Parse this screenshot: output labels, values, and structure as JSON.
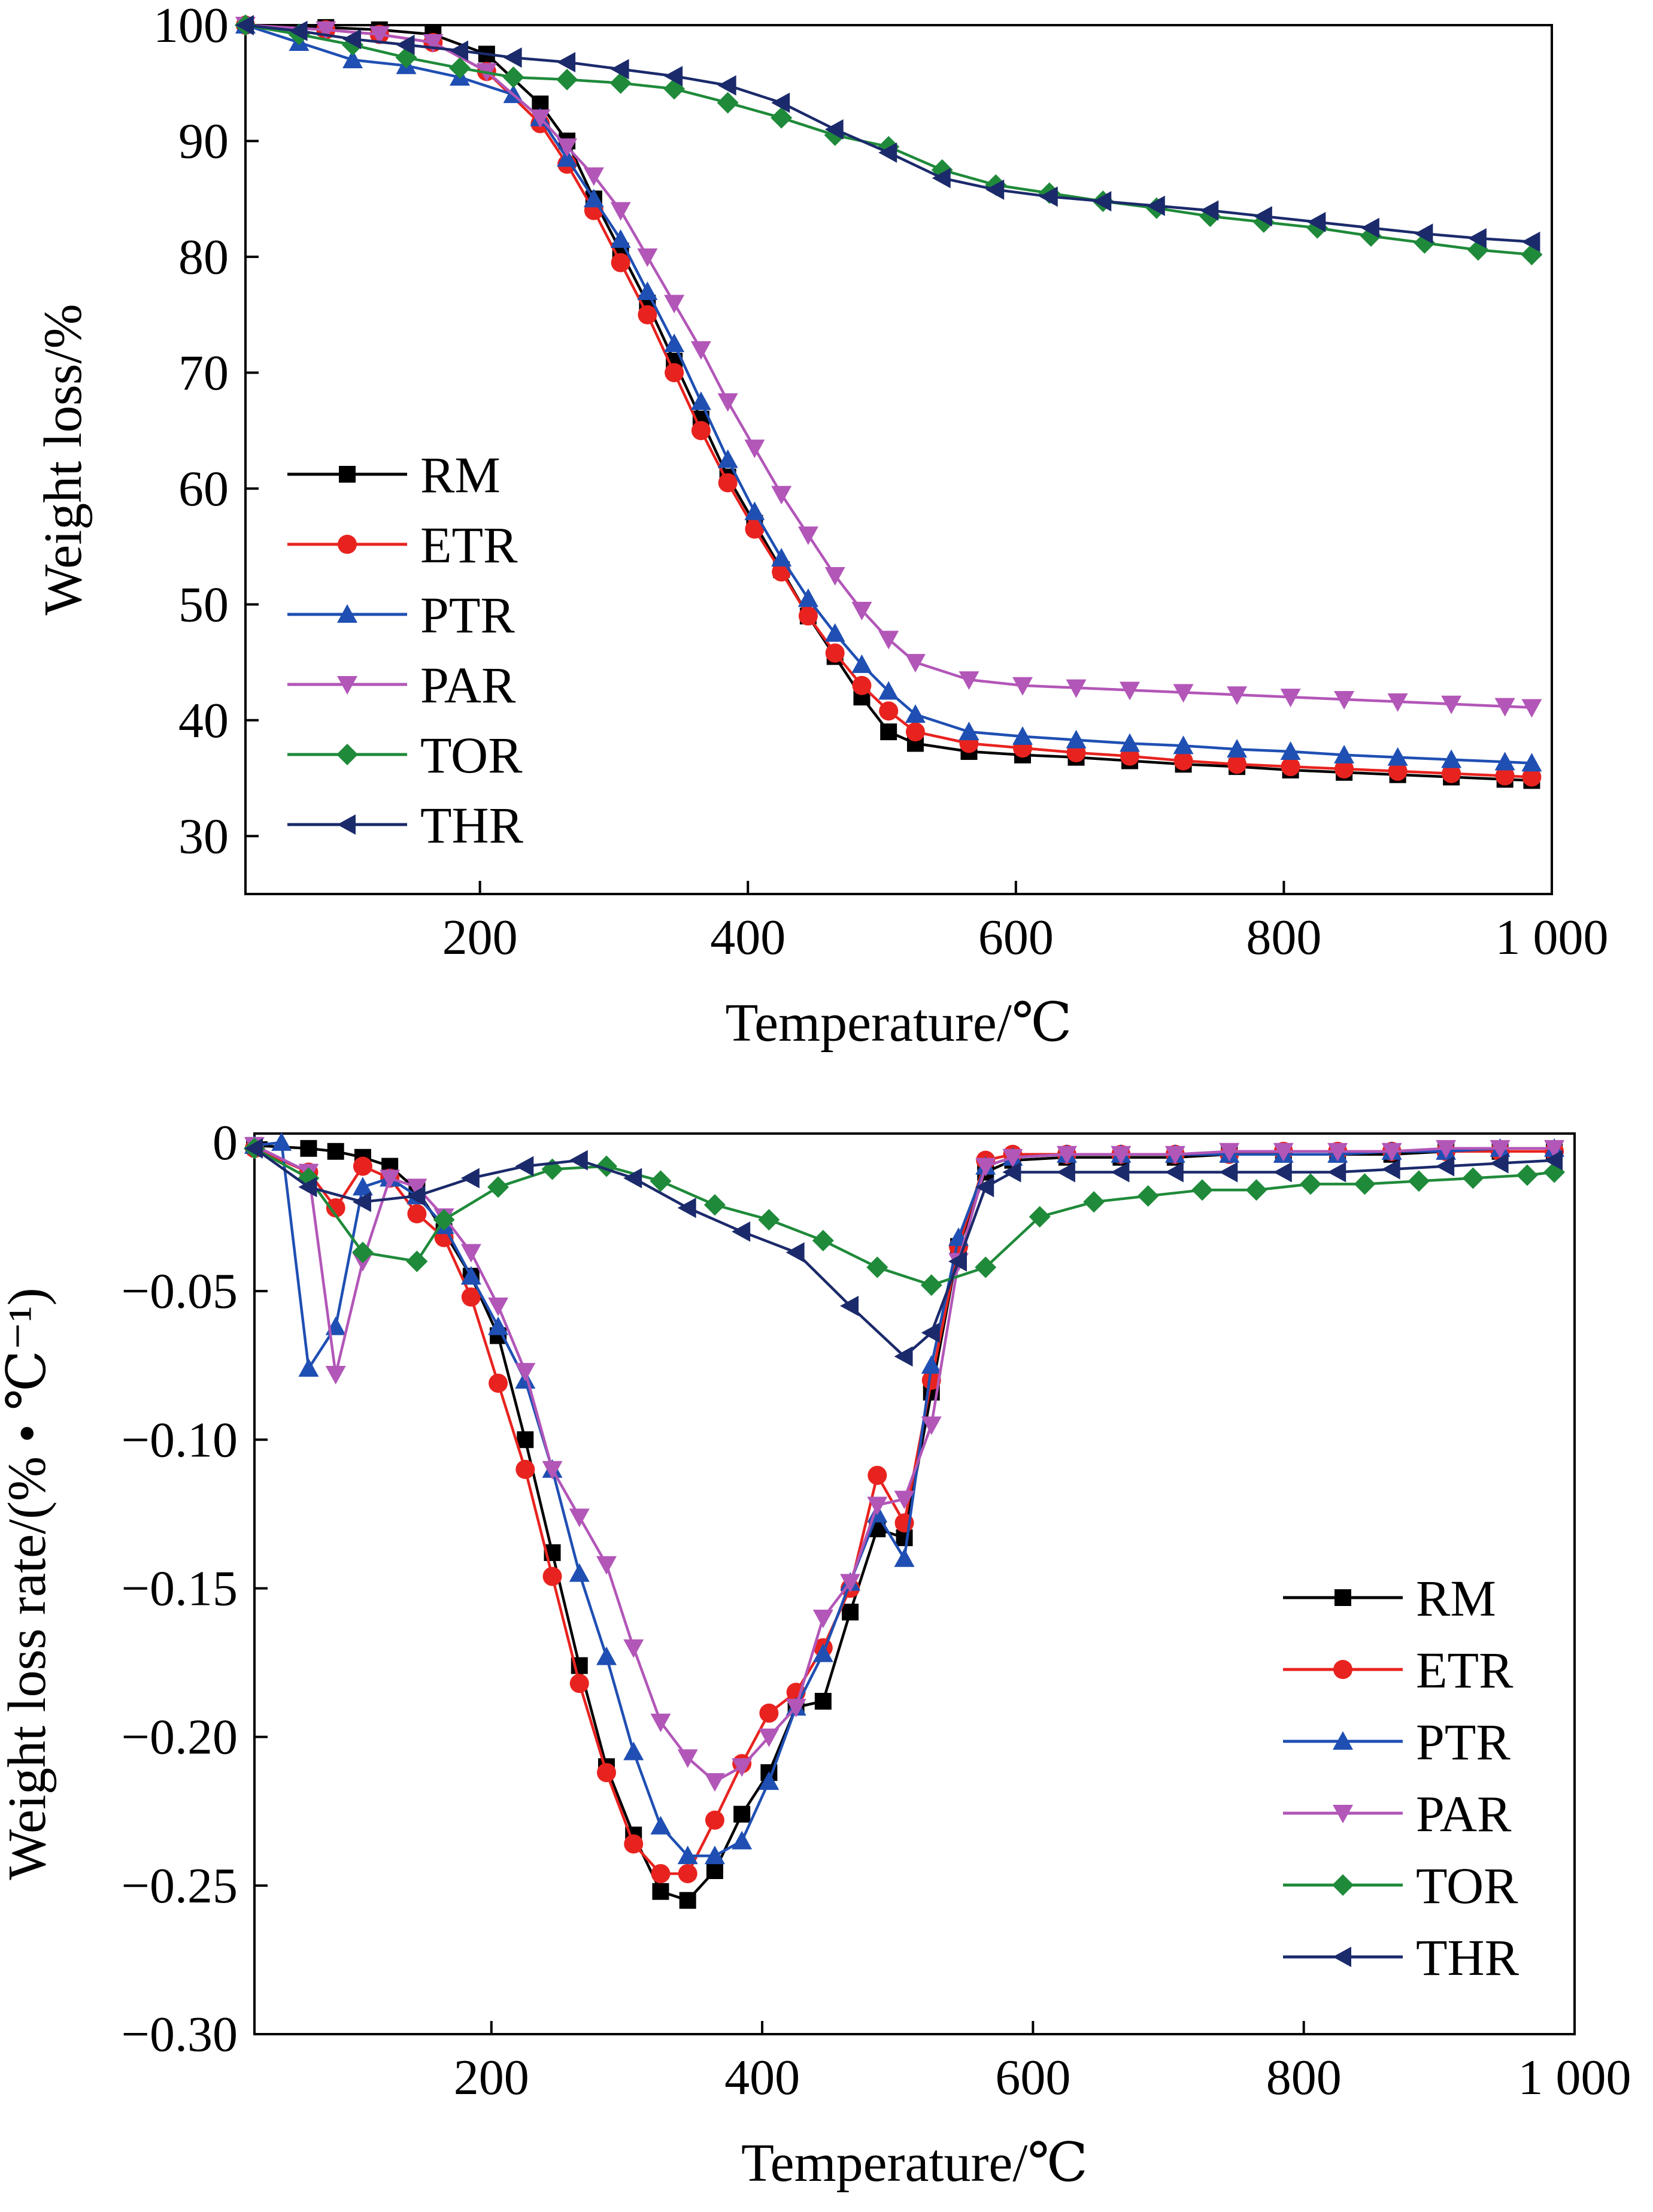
{
  "chart_data": [
    {
      "type": "line",
      "xlabel": "Temperature/℃",
      "ylabel": "Weight loss/%",
      "xlim": [
        25,
        1000
      ],
      "ylim": [
        25,
        100
      ],
      "xticks": [
        200,
        400,
        600,
        800,
        1000
      ],
      "xtick_labels": [
        "200",
        "400",
        "600",
        "800",
        "1 000"
      ],
      "yticks": [
        30,
        40,
        50,
        60,
        70,
        80,
        90,
        100
      ],
      "ytick_labels": [
        "30",
        "40",
        "50",
        "60",
        "70",
        "80",
        "90",
        "100"
      ],
      "legend_position": "lower-left",
      "grid": false,
      "series": [
        {
          "name": "RM",
          "color": "#000000",
          "marker": "square",
          "x": [
            25,
            85,
            125,
            165,
            205,
            245,
            265,
            285,
            305,
            325,
            345,
            365,
            385,
            405,
            425,
            445,
            465,
            485,
            505,
            525,
            565,
            605,
            645,
            685,
            725,
            765,
            805,
            845,
            885,
            925,
            965,
            985
          ],
          "y": [
            100,
            99.8,
            99.6,
            99.2,
            97.5,
            93.2,
            90,
            85,
            80.5,
            76,
            71,
            66,
            61,
            57,
            53,
            49,
            45.5,
            42,
            39,
            38,
            37.3,
            37,
            36.8,
            36.5,
            36.2,
            36,
            35.7,
            35.5,
            35.3,
            35.1,
            34.9,
            34.8
          ]
        },
        {
          "name": "ETR",
          "color": "#e8231f",
          "marker": "circle",
          "x": [
            25,
            85,
            125,
            165,
            205,
            245,
            265,
            285,
            305,
            325,
            345,
            365,
            385,
            405,
            425,
            445,
            465,
            485,
            505,
            525,
            565,
            605,
            645,
            685,
            725,
            765,
            805,
            845,
            885,
            925,
            965,
            985
          ],
          "y": [
            100,
            99.6,
            99.2,
            98.5,
            96,
            91.5,
            88,
            84,
            79.5,
            75,
            70,
            65,
            60.5,
            56.5,
            52.8,
            49,
            45.8,
            43,
            40.8,
            39,
            38,
            37.6,
            37.2,
            36.9,
            36.5,
            36.2,
            36,
            35.8,
            35.6,
            35.4,
            35.2,
            35.1
          ]
        },
        {
          "name": "PTR",
          "color": "#1f4fb3",
          "marker": "triangle-up",
          "x": [
            25,
            65,
            105,
            145,
            185,
            225,
            245,
            265,
            285,
            305,
            325,
            345,
            365,
            385,
            405,
            425,
            445,
            465,
            485,
            505,
            525,
            565,
            605,
            645,
            685,
            725,
            765,
            805,
            845,
            885,
            925,
            965,
            985
          ],
          "y": [
            100,
            98.5,
            97,
            96.5,
            95.5,
            94,
            92,
            88.5,
            85,
            81.5,
            77,
            72.5,
            67.5,
            62.5,
            58,
            54,
            50.5,
            47.5,
            44.8,
            42.5,
            40.5,
            39,
            38.6,
            38.3,
            38,
            37.8,
            37.5,
            37.3,
            37,
            36.8,
            36.6,
            36.4,
            36.3
          ]
        },
        {
          "name": "PAR",
          "color": "#b256b8",
          "marker": "triangle-down",
          "x": [
            25,
            85,
            125,
            165,
            205,
            245,
            265,
            285,
            305,
            325,
            345,
            365,
            385,
            405,
            425,
            445,
            465,
            485,
            505,
            525,
            565,
            605,
            645,
            685,
            725,
            765,
            805,
            845,
            885,
            925,
            965,
            985
          ],
          "y": [
            100,
            99.6,
            99.2,
            98.5,
            96,
            92,
            89.5,
            87,
            84,
            80,
            76,
            72,
            67.5,
            63.5,
            59.5,
            56,
            52.5,
            49.5,
            47,
            45,
            43.5,
            43,
            42.8,
            42.6,
            42.4,
            42.2,
            42,
            41.8,
            41.6,
            41.4,
            41.2,
            41.1
          ]
        },
        {
          "name": "TOR",
          "color": "#1f8a3a",
          "marker": "diamond",
          "x": [
            25,
            65,
            105,
            145,
            185,
            225,
            265,
            305,
            345,
            385,
            425,
            465,
            505,
            545,
            585,
            625,
            665,
            705,
            745,
            785,
            825,
            865,
            905,
            945,
            985
          ],
          "y": [
            100,
            99.2,
            98.3,
            97.2,
            96.3,
            95.5,
            95.3,
            95,
            94.5,
            93.3,
            92,
            90.5,
            89.5,
            87.5,
            86.2,
            85.5,
            84.8,
            84.2,
            83.5,
            83,
            82.5,
            81.8,
            81.2,
            80.6,
            80.2
          ]
        },
        {
          "name": "THR",
          "color": "#1b2a6b",
          "marker": "triangle-left",
          "x": [
            25,
            65,
            105,
            145,
            185,
            225,
            265,
            305,
            345,
            385,
            425,
            465,
            505,
            545,
            585,
            625,
            665,
            705,
            745,
            785,
            825,
            865,
            905,
            945,
            985
          ],
          "y": [
            100,
            99.5,
            98.8,
            98.3,
            97.8,
            97.2,
            96.8,
            96.2,
            95.6,
            94.8,
            93.3,
            91,
            89,
            86.8,
            85.8,
            85.2,
            84.8,
            84.4,
            84,
            83.5,
            83,
            82.5,
            82,
            81.6,
            81.3
          ]
        }
      ]
    },
    {
      "type": "line",
      "xlabel": "Temperature/℃",
      "ylabel": "Weight loss rate/(% • ℃⁻¹)",
      "xlim": [
        25,
        1000
      ],
      "ylim": [
        -0.3,
        0.003
      ],
      "xticks": [
        200,
        400,
        600,
        800,
        1000
      ],
      "xtick_labels": [
        "200",
        "400",
        "600",
        "800",
        "1 000"
      ],
      "yticks": [
        0,
        -0.05,
        -0.1,
        -0.15,
        -0.2,
        -0.25,
        -0.3
      ],
      "ytick_labels": [
        "0",
        "−0.05",
        "−0.10",
        "−0.15",
        "−0.20",
        "−0.25",
        "−0.30"
      ],
      "legend_position": "lower-right",
      "grid": false,
      "series": [
        {
          "name": "RM",
          "color": "#000000",
          "marker": "square",
          "x": [
            25,
            65,
            85,
            105,
            125,
            145,
            165,
            185,
            205,
            225,
            245,
            265,
            285,
            305,
            325,
            345,
            365,
            385,
            405,
            425,
            445,
            465,
            485,
            505,
            525,
            545,
            565,
            585,
            625,
            665,
            705,
            745,
            785,
            825,
            865,
            905,
            945,
            985
          ],
          "y": [
            -0.001,
            -0.002,
            -0.003,
            -0.005,
            -0.008,
            -0.016,
            -0.03,
            -0.045,
            -0.065,
            -0.1,
            -0.138,
            -0.176,
            -0.21,
            -0.233,
            -0.252,
            -0.255,
            -0.245,
            -0.226,
            -0.212,
            -0.19,
            -0.188,
            -0.158,
            -0.13,
            -0.133,
            -0.084,
            -0.035,
            -0.01,
            -0.006,
            -0.005,
            -0.005,
            -0.005,
            -0.004,
            -0.004,
            -0.004,
            -0.004,
            -0.003,
            -0.003,
            -0.003
          ]
        },
        {
          "name": "ETR",
          "color": "#e8231f",
          "marker": "circle",
          "x": [
            25,
            65,
            85,
            105,
            125,
            145,
            165,
            185,
            205,
            225,
            245,
            265,
            285,
            305,
            325,
            345,
            365,
            385,
            405,
            425,
            445,
            465,
            485,
            505,
            525,
            545,
            565,
            585,
            625,
            665,
            705,
            745,
            785,
            825,
            865,
            905,
            945,
            985
          ],
          "y": [
            -0.002,
            -0.01,
            -0.022,
            -0.008,
            -0.012,
            -0.024,
            -0.032,
            -0.052,
            -0.081,
            -0.11,
            -0.146,
            -0.182,
            -0.212,
            -0.236,
            -0.246,
            -0.246,
            -0.228,
            -0.209,
            -0.192,
            -0.185,
            -0.17,
            -0.15,
            -0.112,
            -0.128,
            -0.08,
            -0.035,
            -0.006,
            -0.004,
            -0.004,
            -0.004,
            -0.004,
            -0.004,
            -0.003,
            -0.003,
            -0.003,
            -0.003,
            -0.003,
            -0.003
          ]
        },
        {
          "name": "PTR",
          "color": "#1f4fb3",
          "marker": "triangle-up",
          "x": [
            25,
            45,
            65,
            85,
            105,
            125,
            145,
            165,
            185,
            205,
            225,
            245,
            265,
            285,
            305,
            325,
            345,
            365,
            385,
            405,
            425,
            445,
            465,
            485,
            505,
            525,
            545,
            565,
            585,
            625,
            665,
            705,
            745,
            785,
            825,
            865,
            905,
            945,
            985
          ],
          "y": [
            -0.001,
            0,
            -0.076,
            -0.062,
            -0.015,
            -0.012,
            -0.018,
            -0.028,
            -0.045,
            -0.062,
            -0.08,
            -0.11,
            -0.145,
            -0.173,
            -0.205,
            -0.23,
            -0.24,
            -0.24,
            -0.235,
            -0.215,
            -0.19,
            -0.172,
            -0.148,
            -0.125,
            -0.14,
            -0.075,
            -0.032,
            -0.008,
            -0.005,
            -0.004,
            -0.004,
            -0.004,
            -0.004,
            -0.004,
            -0.004,
            -0.003,
            -0.003,
            -0.002,
            -0.002
          ]
        },
        {
          "name": "PAR",
          "color": "#b256b8",
          "marker": "triangle-down",
          "x": [
            25,
            65,
            85,
            105,
            125,
            145,
            165,
            185,
            205,
            225,
            245,
            265,
            285,
            305,
            325,
            345,
            365,
            385,
            405,
            425,
            445,
            465,
            485,
            505,
            525,
            545,
            565,
            585,
            625,
            665,
            705,
            745,
            785,
            825,
            865,
            905,
            945,
            985
          ],
          "y": [
            -0.001,
            -0.01,
            -0.078,
            -0.04,
            -0.012,
            -0.015,
            -0.025,
            -0.037,
            -0.055,
            -0.077,
            -0.11,
            -0.126,
            -0.142,
            -0.17,
            -0.195,
            -0.207,
            -0.215,
            -0.21,
            -0.2,
            -0.19,
            -0.16,
            -0.148,
            -0.122,
            -0.12,
            -0.095,
            -0.04,
            -0.008,
            -0.005,
            -0.004,
            -0.004,
            -0.004,
            -0.003,
            -0.003,
            -0.003,
            -0.003,
            -0.002,
            -0.002,
            -0.002
          ]
        },
        {
          "name": "TOR",
          "color": "#1f8a3a",
          "marker": "diamond",
          "x": [
            25,
            65,
            105,
            145,
            165,
            205,
            245,
            285,
            325,
            365,
            405,
            445,
            485,
            525,
            565,
            605,
            645,
            685,
            725,
            765,
            805,
            845,
            885,
            925,
            965,
            985
          ],
          "y": [
            -0.002,
            -0.012,
            -0.037,
            -0.04,
            -0.026,
            -0.015,
            -0.009,
            -0.008,
            -0.013,
            -0.021,
            -0.026,
            -0.033,
            -0.042,
            -0.048,
            -0.042,
            -0.025,
            -0.02,
            -0.018,
            -0.016,
            -0.016,
            -0.014,
            -0.014,
            -0.013,
            -0.012,
            -0.011,
            -0.01
          ]
        },
        {
          "name": "THR",
          "color": "#1b2a6b",
          "marker": "triangle-left",
          "x": [
            25,
            65,
            105,
            145,
            185,
            225,
            265,
            305,
            345,
            385,
            425,
            465,
            505,
            525,
            545,
            565,
            585,
            625,
            665,
            705,
            745,
            785,
            825,
            865,
            905,
            945,
            985
          ],
          "y": [
            -0.002,
            -0.015,
            -0.02,
            -0.018,
            -0.012,
            -0.008,
            -0.006,
            -0.012,
            -0.022,
            -0.03,
            -0.037,
            -0.055,
            -0.072,
            -0.064,
            -0.04,
            -0.015,
            -0.01,
            -0.01,
            -0.01,
            -0.01,
            -0.01,
            -0.01,
            -0.01,
            -0.009,
            -0.008,
            -0.007,
            -0.006
          ]
        }
      ]
    }
  ]
}
